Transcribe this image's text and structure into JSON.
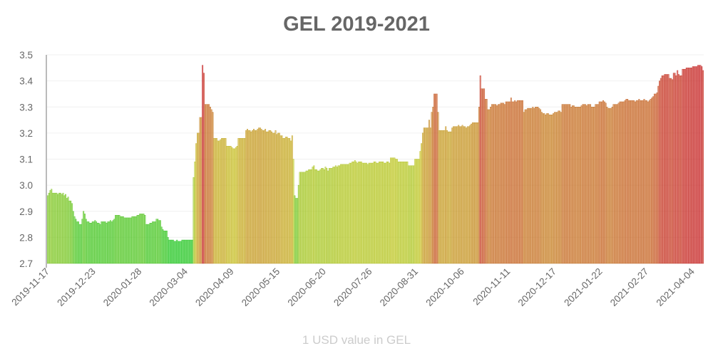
{
  "chart_data": {
    "type": "bar",
    "title": "GEL 2019-2021",
    "xlabel": "1 USD value in GEL",
    "ylabel": "",
    "ylim": [
      2.7,
      3.5
    ],
    "yticks": [
      "2.7",
      "2.8",
      "2.9",
      "3.0",
      "3.1",
      "3.2",
      "3.3",
      "3.4",
      "3.5"
    ],
    "xticks": [
      "2019-11-17",
      "2019-12-23",
      "2020-01-28",
      "2020-03-04",
      "2020-04-09",
      "2020-05-15",
      "2020-06-20",
      "2020-07-26",
      "2020-08-31",
      "2020-10-06",
      "2020-11-11",
      "2020-12-17",
      "2021-01-22",
      "2021-02-27",
      "2021-04-04"
    ],
    "x_start": "2019-11-17",
    "x_interval": "daily",
    "grid": true,
    "color_scale": {
      "low": "#22cc22",
      "mid": "#cccc22",
      "high": "#cc2222"
    },
    "values": [
      2.96,
      2.97,
      2.98,
      2.985,
      2.97,
      2.97,
      2.97,
      2.97,
      2.965,
      2.97,
      2.97,
      2.965,
      2.97,
      2.96,
      2.965,
      2.95,
      2.955,
      2.94,
      2.94,
      2.93,
      2.9,
      2.88,
      2.87,
      2.86,
      2.86,
      2.85,
      2.85,
      2.87,
      2.9,
      2.89,
      2.87,
      2.86,
      2.86,
      2.855,
      2.855,
      2.86,
      2.86,
      2.865,
      2.86,
      2.855,
      2.855,
      2.85,
      2.86,
      2.86,
      2.86,
      2.86,
      2.855,
      2.86,
      2.86,
      2.865,
      2.86,
      2.865,
      2.87,
      2.885,
      2.885,
      2.885,
      2.885,
      2.88,
      2.88,
      2.88,
      2.875,
      2.875,
      2.875,
      2.875,
      2.875,
      2.875,
      2.88,
      2.88,
      2.88,
      2.88,
      2.885,
      2.885,
      2.89,
      2.89,
      2.89,
      2.89,
      2.885,
      2.85,
      2.85,
      2.85,
      2.855,
      2.855,
      2.86,
      2.86,
      2.86,
      2.87,
      2.87,
      2.865,
      2.865,
      2.84,
      2.83,
      2.825,
      2.825,
      2.825,
      2.8,
      2.79,
      2.79,
      2.79,
      2.79,
      2.785,
      2.785,
      2.79,
      2.785,
      2.785,
      2.785,
      2.79,
      2.79,
      2.79,
      2.79,
      2.79,
      2.79,
      2.79,
      2.79,
      2.79,
      3.03,
      3.09,
      3.16,
      3.2,
      3.2,
      3.26,
      3.26,
      3.46,
      3.43,
      3.31,
      3.31,
      3.31,
      3.31,
      3.3,
      3.29,
      3.28,
      3.18,
      3.18,
      3.18,
      3.17,
      3.17,
      3.175,
      3.18,
      3.18,
      3.18,
      3.18,
      3.15,
      3.15,
      3.15,
      3.15,
      3.145,
      3.14,
      3.14,
      3.145,
      3.15,
      3.18,
      3.18,
      3.18,
      3.18,
      3.18,
      3.18,
      3.21,
      3.215,
      3.21,
      3.21,
      3.205,
      3.21,
      3.215,
      3.21,
      3.21,
      3.215,
      3.22,
      3.22,
      3.215,
      3.21,
      3.21,
      3.215,
      3.205,
      3.205,
      3.21,
      3.21,
      3.205,
      3.2,
      3.2,
      3.21,
      3.195,
      3.2,
      3.2,
      3.19,
      3.19,
      3.18,
      3.18,
      3.185,
      3.185,
      3.18,
      3.18,
      3.17,
      3.19,
      3.1,
      2.96,
      2.95,
      2.95,
      3.0,
      3.05,
      3.05,
      3.05,
      3.05,
      3.05,
      3.055,
      3.055,
      3.06,
      3.06,
      3.06,
      3.07,
      3.075,
      3.06,
      3.06,
      3.055,
      3.055,
      3.06,
      3.065,
      3.065,
      3.06,
      3.07,
      3.065,
      3.055,
      3.065,
      3.065,
      3.065,
      3.07,
      3.07,
      3.075,
      3.07,
      3.075,
      3.075,
      3.08,
      3.08,
      3.08,
      3.08,
      3.08,
      3.08,
      3.08,
      3.085,
      3.085,
      3.09,
      3.09,
      3.095,
      3.09,
      3.085,
      3.09,
      3.09,
      3.09,
      3.085,
      3.085,
      3.085,
      3.085,
      3.08,
      3.085,
      3.085,
      3.085,
      3.085,
      3.09,
      3.09,
      3.085,
      3.085,
      3.09,
      3.09,
      3.09,
      3.09,
      3.085,
      3.085,
      3.09,
      3.09,
      3.085,
      3.105,
      3.105,
      3.105,
      3.105,
      3.1,
      3.1,
      3.09,
      3.09,
      3.09,
      3.09,
      3.09,
      3.09,
      3.09,
      3.09,
      3.075,
      3.075,
      3.075,
      3.075,
      3.075,
      3.1,
      3.1,
      3.1,
      3.1,
      3.13,
      3.16,
      3.2,
      3.22,
      3.22,
      3.22,
      3.22,
      3.25,
      3.22,
      3.28,
      3.3,
      3.35,
      3.35,
      3.35,
      3.28,
      3.21,
      3.21,
      3.21,
      3.21,
      3.21,
      3.225,
      3.21,
      3.205,
      3.205,
      3.205,
      3.22,
      3.225,
      3.225,
      3.225,
      3.225,
      3.23,
      3.225,
      3.225,
      3.23,
      3.225,
      3.225,
      3.22,
      3.225,
      3.225,
      3.23,
      3.235,
      3.24,
      3.24,
      3.24,
      3.24,
      3.24,
      3.3,
      3.42,
      3.37,
      3.37,
      3.37,
      3.33,
      3.33,
      3.29,
      3.29,
      3.3,
      3.31,
      3.31,
      3.31,
      3.31,
      3.305,
      3.31,
      3.31,
      3.315,
      3.315,
      3.315,
      3.31,
      3.32,
      3.32,
      3.32,
      3.32,
      3.335,
      3.32,
      3.32,
      3.325,
      3.32,
      3.325,
      3.325,
      3.325,
      3.325,
      3.325,
      3.28,
      3.29,
      3.29,
      3.295,
      3.295,
      3.295,
      3.295,
      3.3,
      3.295,
      3.3,
      3.3,
      3.3,
      3.295,
      3.29,
      3.28,
      3.275,
      3.275,
      3.27,
      3.275,
      3.275,
      3.27,
      3.27,
      3.27,
      3.275,
      3.28,
      3.28,
      3.28,
      3.285,
      3.285,
      3.28,
      3.31,
      3.31,
      3.31,
      3.31,
      3.31,
      3.31,
      3.31,
      3.3,
      3.305,
      3.305,
      3.3,
      3.3,
      3.3,
      3.3,
      3.3,
      3.305,
      3.31,
      3.31,
      3.31,
      3.305,
      3.31,
      3.31,
      3.31,
      3.3,
      3.3,
      3.3,
      3.31,
      3.31,
      3.31,
      3.32,
      3.32,
      3.32,
      3.325,
      3.32,
      3.315,
      3.3,
      3.295,
      3.295,
      3.295,
      3.3,
      3.31,
      3.31,
      3.31,
      3.31,
      3.315,
      3.32,
      3.32,
      3.32,
      3.32,
      3.325,
      3.33,
      3.33,
      3.325,
      3.325,
      3.325,
      3.325,
      3.325,
      3.32,
      3.325,
      3.325,
      3.33,
      3.325,
      3.325,
      3.325,
      3.33,
      3.325,
      3.325,
      3.32,
      3.325,
      3.33,
      3.335,
      3.34,
      3.35,
      3.35,
      3.355,
      3.38,
      3.4,
      3.41,
      3.42,
      3.42,
      3.425,
      3.425,
      3.425,
      3.425,
      3.41,
      3.41,
      3.405,
      3.43,
      3.43,
      3.42,
      3.44,
      3.425,
      3.42,
      3.42,
      3.445,
      3.445,
      3.445,
      3.45,
      3.45,
      3.45,
      3.45,
      3.45,
      3.455,
      3.455,
      3.455,
      3.455,
      3.46,
      3.46,
      3.46,
      3.455,
      3.44
    ]
  }
}
